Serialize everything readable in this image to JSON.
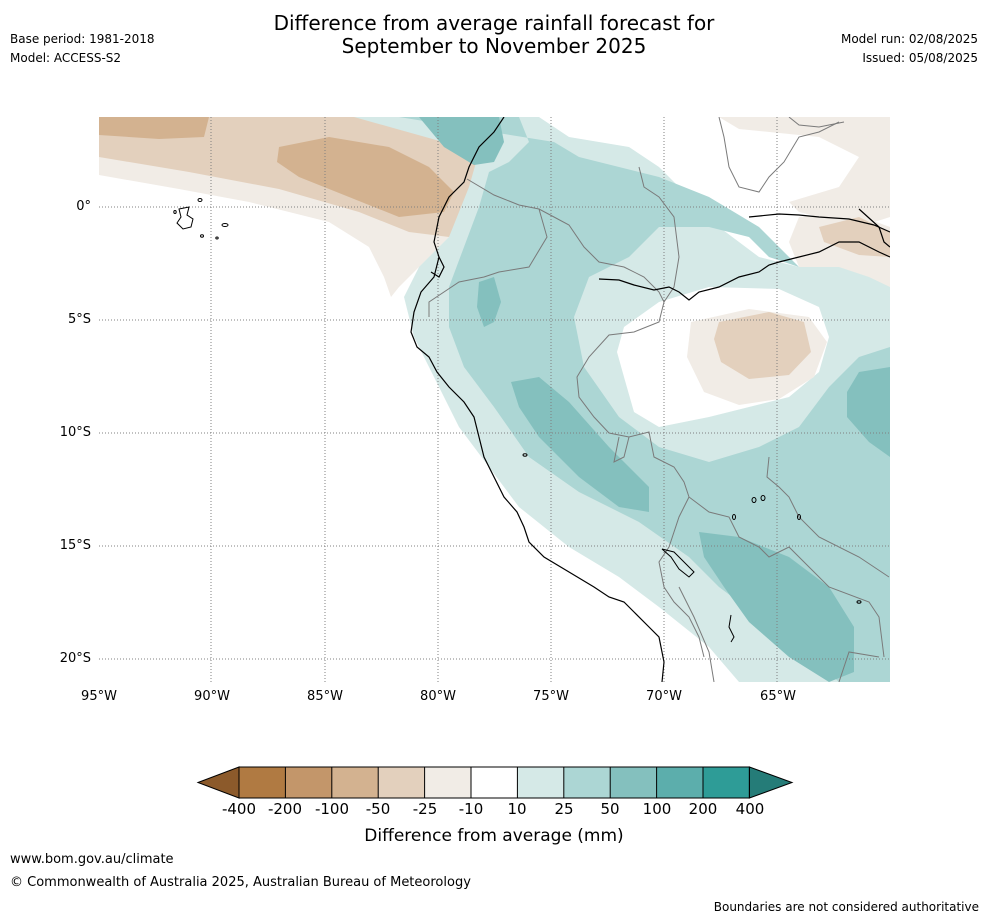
{
  "header": {
    "base_period": "Base period: 1981-2018",
    "model": "Model: ACCESS-S2",
    "title_line1": "Difference from average rainfall forecast for",
    "title_line2": "September to November 2025",
    "model_run": "Model run: 02/08/2025",
    "issued": "Issued: 05/08/2025"
  },
  "map": {
    "lat_labels": [
      "0°",
      "5°S",
      "10°S",
      "15°S",
      "20°S"
    ],
    "lon_labels": [
      "95°W",
      "90°W",
      "85°W",
      "80°W",
      "75°W",
      "70°W",
      "65°W"
    ]
  },
  "colorbar": {
    "title": "Difference from average (mm)",
    "tick_labels": [
      "-400",
      "-200",
      "-100",
      "-50",
      "-25",
      "-10",
      "10",
      "25",
      "50",
      "100",
      "200",
      "400"
    ],
    "colors": [
      "#8c5a2b",
      "#b07a42",
      "#c3966a",
      "#d3b290",
      "#e3d0bd",
      "#f1ece6",
      "#ffffff",
      "#d5e9e7",
      "#acd6d4",
      "#84c0be",
      "#5caeac",
      "#2e9c97",
      "#257c78"
    ]
  },
  "footer": {
    "url": "www.bom.gov.au/climate",
    "copyright": "© Commonwealth of Australia 2025, Australian Bureau of Meteorology",
    "disclaimer": "Boundaries are not considered authoritative"
  }
}
